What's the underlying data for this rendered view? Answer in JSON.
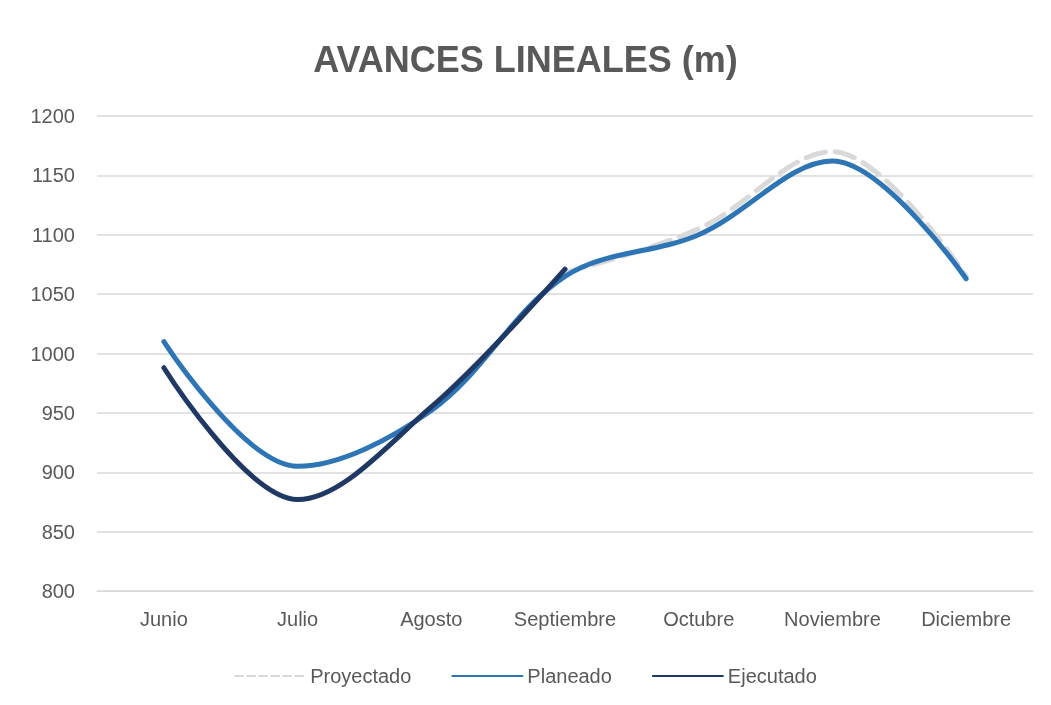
{
  "chart_data": {
    "type": "line",
    "title": "AVANCES LINEALES (m)",
    "categories": [
      "Junio",
      "Julio",
      "Agosto",
      "Septiembre",
      "Octubre",
      "Noviembre",
      "Diciembre"
    ],
    "series": [
      {
        "name": "Proyectado",
        "color": "#d9d9d9",
        "line_style": "dashed",
        "values": [
          null,
          null,
          null,
          1068,
          1105,
          1170,
          1065
        ]
      },
      {
        "name": "Planeado",
        "color": "#2e75b6",
        "line_style": "solid",
        "values": [
          1010,
          905,
          952,
          1065,
          1100,
          1162,
          1063
        ]
      },
      {
        "name": "Ejecutado",
        "color": "#1f3864",
        "line_style": "solid",
        "values": [
          988,
          877,
          955,
          1071,
          null,
          null,
          null
        ]
      }
    ],
    "ylim": [
      800,
      1200
    ],
    "yticks": [
      800,
      850,
      900,
      950,
      1000,
      1050,
      1100,
      1150,
      1200
    ],
    "grid": "y",
    "legend": "bottom",
    "marker": "none"
  }
}
